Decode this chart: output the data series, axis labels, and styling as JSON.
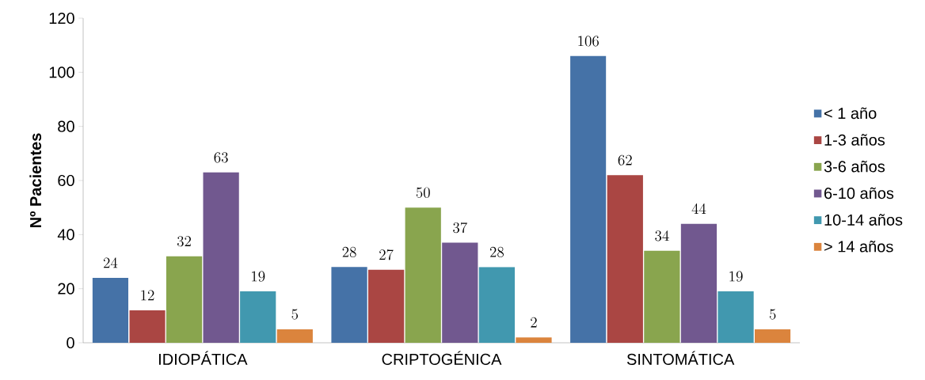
{
  "chart_data": {
    "type": "bar",
    "ylabel": "Nº Pacientes",
    "categories": [
      "IDIOPÁTICA",
      "CRIPTOGÉNICA",
      "SINTOMÁTICA"
    ],
    "series": [
      {
        "name": "< 1 año",
        "color": "#4572a7",
        "values": [
          24,
          28,
          106
        ]
      },
      {
        "name": "1-3 años",
        "color": "#aa4643",
        "values": [
          12,
          27,
          62
        ]
      },
      {
        "name": "3-6 años",
        "color": "#89a54e",
        "values": [
          32,
          50,
          34
        ]
      },
      {
        "name": "6-10 años",
        "color": "#71588f",
        "values": [
          63,
          37,
          44
        ]
      },
      {
        "name": "10-14 años",
        "color": "#4198af",
        "values": [
          19,
          28,
          19
        ]
      },
      {
        "name": "> 14 años",
        "color": "#db843d",
        "values": [
          5,
          2,
          5
        ]
      }
    ],
    "ylim": [
      0,
      120
    ],
    "yticks": [
      0,
      20,
      40,
      60,
      80,
      100,
      120
    ],
    "data_labels": true,
    "grid": false,
    "legend": "right"
  }
}
